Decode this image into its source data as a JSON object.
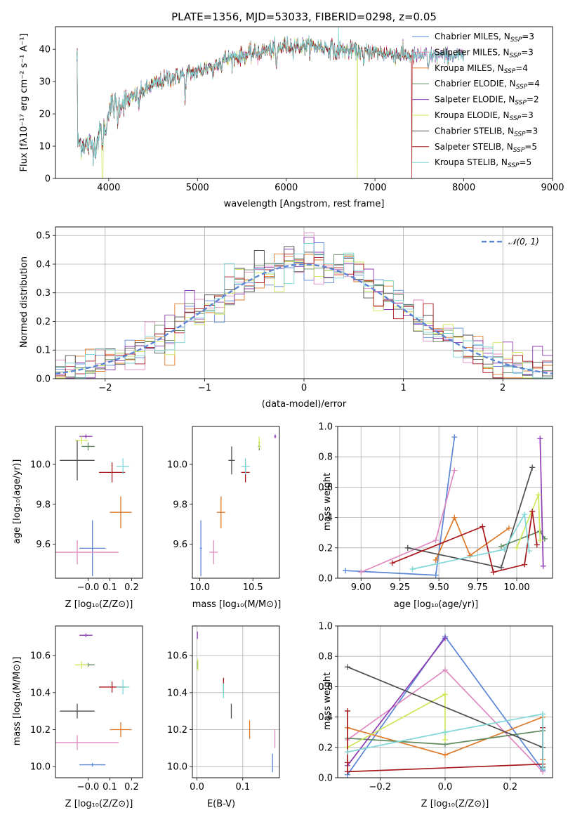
{
  "colors": {
    "Chabrier MILES": "#5b86d6",
    "Salpeter MILES": "#e08ac0",
    "Kroupa MILES": "#dd7a2a",
    "Chabrier ELODIE": "#5f8a5f",
    "Salpeter ELODIE": "#8e3cb3",
    "Kroupa ELODIE": "#cde85a",
    "Chabrier STELIB": "#4d4d4d",
    "Salpeter STELIB": "#a8181c",
    "Kroupa STELIB": "#7fd6d6",
    "normal": "#5b86d6"
  },
  "chart_data": [
    {
      "type": "line",
      "title": "PLATE=1356, MJD=53033, FIBERID=0298, z=0.05",
      "xlabel": "wavelength [Angstrom, rest frame]",
      "ylabel": "Flux [fλ10⁻¹⁷ erg cm⁻² s⁻¹ A⁻¹]",
      "xlim": [
        3400,
        9000
      ],
      "ylim": [
        0,
        47
      ],
      "xticks": [
        "4000",
        "5000",
        "6000",
        "7000",
        "8000",
        "9000"
      ],
      "yticks": [
        "0",
        "10",
        "20",
        "30",
        "40"
      ],
      "legend_position": "right",
      "legend": [
        {
          "base": "Chabrier MILES, N",
          "sub": "SSP",
          "suffix": "=3"
        },
        {
          "base": "Salpeter MILES, N",
          "sub": "SSP",
          "suffix": "=3"
        },
        {
          "base": "Kroupa MILES, N",
          "sub": "SSP",
          "suffix": "=4"
        },
        {
          "base": "Chabrier ELODIE, N",
          "sub": "SSP",
          "suffix": "=4"
        },
        {
          "base": "Salpeter ELODIE, N",
          "sub": "SSP",
          "suffix": "=2"
        },
        {
          "base": "Kroupa ELODIE, N",
          "sub": "SSP",
          "suffix": "=3"
        },
        {
          "base": "Chabrier STELIB, N",
          "sub": "SSP",
          "suffix": "=3"
        },
        {
          "base": "Salpeter STELIB, N",
          "sub": "SSP",
          "suffix": "=5"
        },
        {
          "base": "Kroupa STELIB, N",
          "sub": "SSP",
          "suffix": "=5"
        }
      ],
      "continuum_anchors": [
        [
          3650,
          11
        ],
        [
          3850,
          10
        ],
        [
          4000,
          22
        ],
        [
          4200,
          24
        ],
        [
          4500,
          29
        ],
        [
          4800,
          32
        ],
        [
          5000,
          33
        ],
        [
          5300,
          37
        ],
        [
          5700,
          39
        ],
        [
          6000,
          41
        ],
        [
          6300,
          41
        ],
        [
          6600,
          40
        ],
        [
          7000,
          39
        ],
        [
          7400,
          38
        ],
        [
          9000,
          38
        ]
      ]
    },
    {
      "type": "histogram",
      "xlabel": "(data-model)/error",
      "ylabel": "Normed distribution",
      "xlim": [
        -2.5,
        2.5
      ],
      "ylim": [
        0,
        0.53
      ],
      "xticks": [
        "−2",
        "−1",
        "0",
        "1",
        "2"
      ],
      "yticks": [
        "0.0",
        "0.1",
        "0.2",
        "0.3",
        "0.4",
        "0.5"
      ],
      "grid": true,
      "legend": "𝒩(0, 1)",
      "bin_width": 0.1
    },
    {
      "type": "scatter",
      "xlabel": "Z [log₁₀(Z/Z⊙)]",
      "ylabel": "age  [log₁₀(age/yr)]",
      "xlim": [
        -0.15,
        0.25
      ],
      "ylim": [
        9.43,
        10.19
      ],
      "xticks": [
        -0.0,
        0.1,
        0.2
      ],
      "yticks": [
        9.6,
        9.8,
        10.0
      ],
      "points": [
        {
          "s": "Chabrier MILES",
          "x": 0.02,
          "y": 9.58,
          "ex": 0.06,
          "ey": 0.14
        },
        {
          "s": "Salpeter MILES",
          "x": -0.05,
          "y": 9.56,
          "ex": 0.19,
          "ey": 0.06
        },
        {
          "s": "Kroupa MILES",
          "x": 0.15,
          "y": 9.76,
          "ex": 0.05,
          "ey": 0.08
        },
        {
          "s": "Chabrier ELODIE",
          "x": 0.0,
          "y": 10.09,
          "ex": 0.03,
          "ey": 0.02
        },
        {
          "s": "Salpeter ELODIE",
          "x": -0.01,
          "y": 10.14,
          "ex": 0.03,
          "ey": 0.01
        },
        {
          "s": "Kroupa ELODIE",
          "x": -0.03,
          "y": 10.12,
          "ex": 0.03,
          "ey": 0.02
        },
        {
          "s": "Chabrier STELIB",
          "x": -0.05,
          "y": 10.02,
          "ex": 0.08,
          "ey": 0.1
        },
        {
          "s": "Salpeter STELIB",
          "x": 0.11,
          "y": 9.96,
          "ex": 0.06,
          "ey": 0.05
        },
        {
          "s": "Kroupa STELIB",
          "x": 0.16,
          "y": 9.99,
          "ex": 0.03,
          "ey": 0.04
        }
      ]
    },
    {
      "type": "scatter",
      "xlabel": "mass [log₁₀(M/M⊙)]",
      "xlim": [
        9.93,
        10.75
      ],
      "ylim": [
        9.43,
        10.19
      ],
      "xticks": [
        10.0,
        10.5
      ],
      "yticks": [
        9.6,
        9.8,
        10.0
      ],
      "points": [
        {
          "s": "Chabrier MILES",
          "x": 10.01,
          "y": 9.58,
          "ex": 0.01,
          "ey": 0.14
        },
        {
          "s": "Salpeter MILES",
          "x": 10.13,
          "y": 9.56,
          "ex": 0.04,
          "ey": 0.06
        },
        {
          "s": "Kroupa MILES",
          "x": 10.2,
          "y": 9.76,
          "ex": 0.04,
          "ey": 0.08
        },
        {
          "s": "Chabrier ELODIE",
          "x": 10.56,
          "y": 10.09,
          "ex": 0.01,
          "ey": 0.02
        },
        {
          "s": "Salpeter ELODIE",
          "x": 10.71,
          "y": 10.14,
          "ex": 0.01,
          "ey": 0.01
        },
        {
          "s": "Kroupa ELODIE",
          "x": 10.56,
          "y": 10.11,
          "ex": 0.01,
          "ey": 0.03
        },
        {
          "s": "Chabrier STELIB",
          "x": 10.3,
          "y": 10.02,
          "ex": 0.03,
          "ey": 0.07
        },
        {
          "s": "Salpeter STELIB",
          "x": 10.43,
          "y": 9.96,
          "ex": 0.04,
          "ey": 0.05
        },
        {
          "s": "Kroupa STELIB",
          "x": 10.43,
          "y": 9.99,
          "ex": 0.04,
          "ey": 0.04
        }
      ]
    },
    {
      "type": "line",
      "xlabel": "age  [log₁₀(age/yr)]",
      "ylabel": "mass weight",
      "xlim": [
        8.85,
        10.23
      ],
      "ylim": [
        0,
        1
      ],
      "xticks": [
        9.0,
        9.25,
        9.5,
        9.75,
        10.0
      ],
      "yticks": [
        0.0,
        0.2,
        0.4,
        0.6,
        0.8,
        1.0
      ],
      "grid": true,
      "series": [
        {
          "s": "Chabrier MILES",
          "pts": [
            [
              8.9,
              0.05
            ],
            [
              9.48,
              0.02
            ],
            [
              9.6,
              0.93
            ]
          ]
        },
        {
          "s": "Salpeter MILES",
          "pts": [
            [
              9.0,
              0.04
            ],
            [
              9.48,
              0.25
            ],
            [
              9.6,
              0.71
            ]
          ]
        },
        {
          "s": "Kroupa MILES",
          "pts": [
            [
              9.48,
              0.12
            ],
            [
              9.6,
              0.4
            ],
            [
              9.7,
              0.15
            ],
            [
              9.95,
              0.33
            ]
          ]
        },
        {
          "s": "Chabrier ELODIE",
          "pts": [
            [
              9.9,
              0.21
            ],
            [
              10.15,
              0.31
            ],
            [
              10.18,
              0.26
            ]
          ]
        },
        {
          "s": "Salpeter ELODIE",
          "pts": [
            [
              10.15,
              0.92
            ],
            [
              10.17,
              0.08
            ]
          ]
        },
        {
          "s": "Kroupa ELODIE",
          "pts": [
            [
              10.0,
              0.2
            ],
            [
              10.14,
              0.55
            ],
            [
              10.15,
              0.25
            ]
          ]
        },
        {
          "s": "Chabrier STELIB",
          "pts": [
            [
              9.3,
              0.2
            ],
            [
              9.9,
              0.07
            ],
            [
              10.1,
              0.73
            ]
          ]
        },
        {
          "s": "Salpeter STELIB",
          "pts": [
            [
              9.2,
              0.1
            ],
            [
              9.78,
              0.34
            ],
            [
              9.85,
              0.04
            ],
            [
              10.05,
              0.09
            ],
            [
              10.1,
              0.44
            ],
            [
              10.13,
              0.22
            ]
          ]
        },
        {
          "s": "Kroupa STELIB",
          "pts": [
            [
              9.33,
              0.06
            ],
            [
              9.92,
              0.19
            ],
            [
              10.05,
              0.42
            ],
            [
              10.08,
              0.18
            ]
          ]
        }
      ]
    },
    {
      "type": "scatter",
      "xlabel": "Z [log₁₀(Z/Z⊙)]",
      "ylabel": "mass [log₁₀(M/M⊙)]",
      "xlim": [
        -0.15,
        0.25
      ],
      "ylim": [
        9.94,
        10.76
      ],
      "xticks": [
        -0.0,
        0.1,
        0.2
      ],
      "yticks": [
        10.0,
        10.2,
        10.4,
        10.6
      ],
      "points": [
        {
          "s": "Chabrier MILES",
          "x": 0.02,
          "y": 10.01,
          "ex": 0.06,
          "ey": 0.01
        },
        {
          "s": "Salpeter MILES",
          "x": -0.05,
          "y": 10.13,
          "ex": 0.19,
          "ey": 0.04
        },
        {
          "s": "Kroupa MILES",
          "x": 0.15,
          "y": 10.2,
          "ex": 0.05,
          "ey": 0.04
        },
        {
          "s": "Chabrier ELODIE",
          "x": 0.0,
          "y": 10.55,
          "ex": 0.03,
          "ey": 0.01
        },
        {
          "s": "Salpeter ELODIE",
          "x": -0.01,
          "y": 10.71,
          "ex": 0.03,
          "ey": 0.01
        },
        {
          "s": "Kroupa ELODIE",
          "x": -0.03,
          "y": 10.55,
          "ex": 0.03,
          "ey": 0.02
        },
        {
          "s": "Chabrier STELIB",
          "x": -0.05,
          "y": 10.3,
          "ex": 0.08,
          "ey": 0.04
        },
        {
          "s": "Salpeter STELIB",
          "x": 0.11,
          "y": 10.43,
          "ex": 0.06,
          "ey": 0.03
        },
        {
          "s": "Kroupa STELIB",
          "x": 0.16,
          "y": 10.43,
          "ex": 0.03,
          "ey": 0.04
        }
      ]
    },
    {
      "type": "scatter",
      "xlabel": "E(B-V)",
      "xlim": [
        -0.01,
        0.18
      ],
      "ylim": [
        9.94,
        10.76
      ],
      "xticks": [
        0.0,
        0.1
      ],
      "yticks": [
        10.0,
        10.2,
        10.4,
        10.6
      ],
      "points": [
        {
          "s": "Chabrier MILES",
          "x": 0.165,
          "y": 10.02,
          "ex": 0,
          "ey": 0.05
        },
        {
          "s": "Salpeter MILES",
          "x": 0.17,
          "y": 10.15,
          "ex": 0,
          "ey": 0.05
        },
        {
          "s": "Kroupa MILES",
          "x": 0.115,
          "y": 10.2,
          "ex": 0,
          "ey": 0.05
        },
        {
          "s": "Chabrier ELODIE",
          "x": 0.001,
          "y": 10.55,
          "ex": 0,
          "ey": 0.02
        },
        {
          "s": "Salpeter ELODIE",
          "x": 0.001,
          "y": 10.71,
          "ex": 0,
          "ey": 0.02
        },
        {
          "s": "Kroupa ELODIE",
          "x": 0.002,
          "y": 10.55,
          "ex": 0,
          "ey": 0.03
        },
        {
          "s": "Chabrier STELIB",
          "x": 0.075,
          "y": 10.3,
          "ex": 0,
          "ey": 0.04
        },
        {
          "s": "Salpeter STELIB",
          "x": 0.058,
          "y": 10.44,
          "ex": 0,
          "ey": 0.04
        },
        {
          "s": "Kroupa STELIB",
          "x": 0.058,
          "y": 10.41,
          "ex": 0,
          "ey": 0.04
        }
      ]
    },
    {
      "type": "line",
      "xlabel": "Z [log₁₀(Z/Z⊙)]",
      "ylabel": "mass weight",
      "xlim": [
        -0.33,
        0.33
      ],
      "ylim": [
        0,
        1
      ],
      "xticks": [
        -0.2,
        0.0,
        0.2
      ],
      "yticks": [
        0.0,
        0.2,
        0.4,
        0.6,
        0.8,
        1.0
      ],
      "grid": true,
      "series": [
        {
          "s": "Chabrier MILES",
          "pts": [
            [
              -0.3,
              0.02
            ],
            [
              0.0,
              0.93
            ],
            [
              0.3,
              0.05
            ]
          ]
        },
        {
          "s": "Salpeter MILES",
          "pts": [
            [
              -0.3,
              0.25
            ],
            [
              0.0,
              0.71
            ],
            [
              0.3,
              0.04
            ]
          ]
        },
        {
          "s": "Kroupa MILES",
          "pts": [
            [
              -0.3,
              0.33
            ],
            [
              0.0,
              0.15
            ],
            [
              0.3,
              0.4
            ],
            [
              0.3,
              0.12
            ]
          ]
        },
        {
          "s": "Chabrier ELODIE",
          "pts": [
            [
              -0.3,
              0.26
            ],
            [
              0.0,
              0.22
            ],
            [
              0.3,
              0.31
            ]
          ]
        },
        {
          "s": "Salpeter ELODIE",
          "pts": [
            [
              -0.3,
              0.08
            ],
            [
              0.0,
              0.92
            ]
          ]
        },
        {
          "s": "Kroupa ELODIE",
          "pts": [
            [
              -0.3,
              0.2
            ],
            [
              0.0,
              0.55
            ],
            [
              0.0,
              0.25
            ]
          ]
        },
        {
          "s": "Chabrier STELIB",
          "pts": [
            [
              -0.3,
              0.73
            ],
            [
              0.3,
              0.2
            ],
            [
              0.3,
              0.07
            ]
          ]
        },
        {
          "s": "Salpeter STELIB",
          "pts": [
            [
              -0.3,
              0.44
            ],
            [
              -0.3,
              0.1
            ],
            [
              -0.3,
              0.04
            ],
            [
              0.3,
              0.09
            ],
            [
              0.3,
              0.33
            ]
          ]
        },
        {
          "s": "Kroupa STELIB",
          "pts": [
            [
              -0.3,
              0.17
            ],
            [
              0.0,
              0.3
            ],
            [
              0.3,
              0.42
            ],
            [
              0.3,
              0.06
            ]
          ]
        }
      ]
    }
  ]
}
